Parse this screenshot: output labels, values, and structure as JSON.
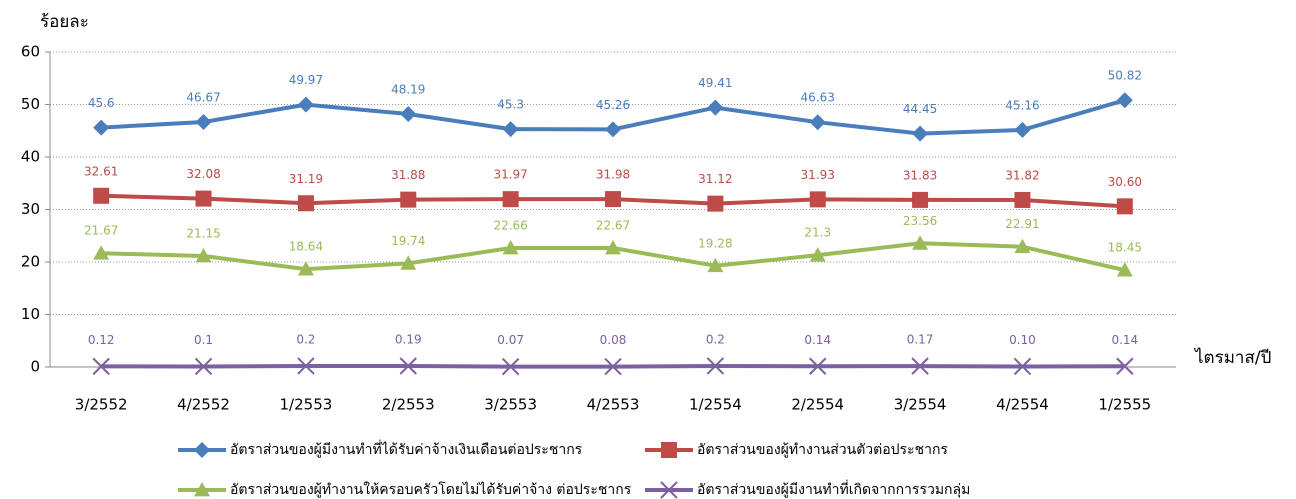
{
  "chart_data": {
    "type": "line",
    "y_label": "ร้อยละ",
    "x_label": "ไตรมาส/ปี",
    "categories": [
      "3/2552",
      "4/2552",
      "1/2553",
      "2/2553",
      "3/2553",
      "4/2553",
      "1/2554",
      "2/2554",
      "3/2554",
      "4/2554",
      "1/2555"
    ],
    "series": [
      {
        "name": "อัตราส่วนของผู้มีงานทำที่ได้รับค่าจ้างเงินเดือนต่อประชากร",
        "color": "#4a7ebb",
        "marker": "diamond",
        "values": [
          45.6,
          46.67,
          49.97,
          48.19,
          45.3,
          45.26,
          49.41,
          46.63,
          44.45,
          45.16,
          50.82
        ]
      },
      {
        "name": "อัตราส่วนของผู้ทำงานส่วนตัวต่อประชากร",
        "color": "#be4b48",
        "marker": "square",
        "values": [
          32.61,
          32.08,
          31.19,
          31.88,
          31.97,
          31.98,
          31.12,
          31.93,
          31.83,
          31.82,
          30.6
        ],
        "value_labels": [
          "32.61",
          "32.08",
          "31.19",
          "31.88",
          "31.97",
          "31.98",
          "31.12",
          "31.93",
          "31.83",
          "31.82",
          "30.60"
        ]
      },
      {
        "name": "อัตราส่วนของผู้ทำงานให้ครอบครัวโดยไม่ได้รับค่าจ้าง ต่อประชากร",
        "color": "#9bbb59",
        "marker": "triangle",
        "values": [
          21.67,
          21.15,
          18.64,
          19.74,
          22.66,
          22.67,
          19.28,
          21.3,
          23.56,
          22.91,
          18.45
        ]
      },
      {
        "name": "อัตราส่วนของผู้มีงานทำที่เกิดจากการรวมกลุ่ม",
        "color": "#7d60a0",
        "marker": "x",
        "values": [
          0.12,
          0.1,
          0.2,
          0.19,
          0.07,
          0.08,
          0.2,
          0.14,
          0.17,
          0.1,
          0.14
        ],
        "value_labels": [
          "0.12",
          "0.1",
          "0.2",
          "0.19",
          "0.07",
          "0.08",
          "0.2",
          "0.14",
          "0.17",
          "0.10",
          "0.14"
        ]
      }
    ],
    "ylim": [
      0,
      60
    ],
    "yticks": [
      0,
      10,
      20,
      30,
      40,
      50,
      60
    ],
    "grid": true,
    "legend": "bottom"
  }
}
